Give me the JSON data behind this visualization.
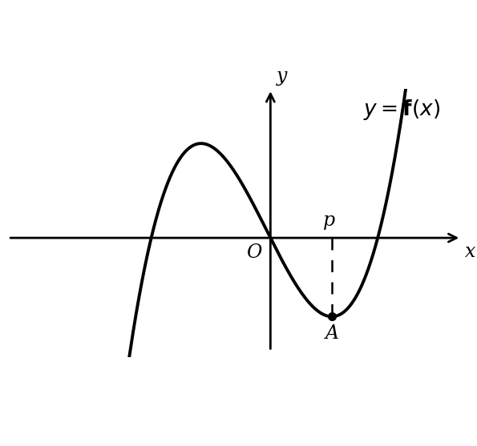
{
  "curve_color": "#000000",
  "axis_color": "#000000",
  "background_color": "#ffffff",
  "xlim": [
    -4.5,
    3.2
  ],
  "ylim": [
    -2.0,
    2.5
  ],
  "figsize": [
    5.95,
    5.57
  ],
  "dpi": 100,
  "linewidth": 2.8,
  "axis_linewidth": 2.0,
  "font_size_labels": 17,
  "font_size_equation": 19,
  "curve_roots": [
    -2.0,
    0.0,
    1.8
  ],
  "curve_scale": 0.55
}
